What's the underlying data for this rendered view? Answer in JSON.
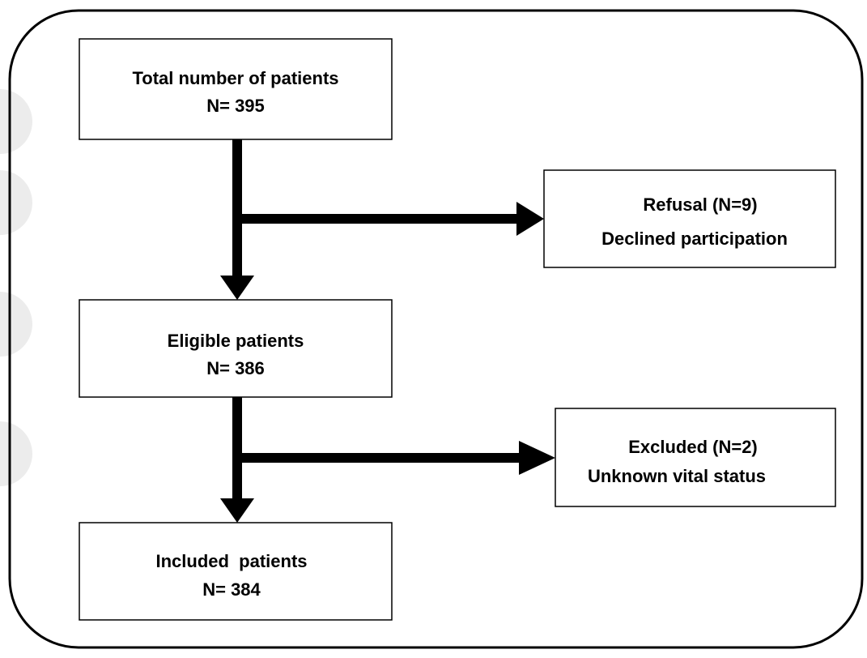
{
  "nodes": [
    {
      "lines": [
        "Total number of patients",
        "N= 395"
      ]
    },
    {
      "lines": [
        "Refusal (N=9)",
        "Declined participation"
      ]
    },
    {
      "lines": [
        "Eligible patients",
        "N= 386"
      ]
    },
    {
      "lines": [
        "Excluded (N=2)",
        "Unknown vital status"
      ]
    },
    {
      "lines": [
        "Included  patients",
        "N= 384"
      ]
    }
  ]
}
